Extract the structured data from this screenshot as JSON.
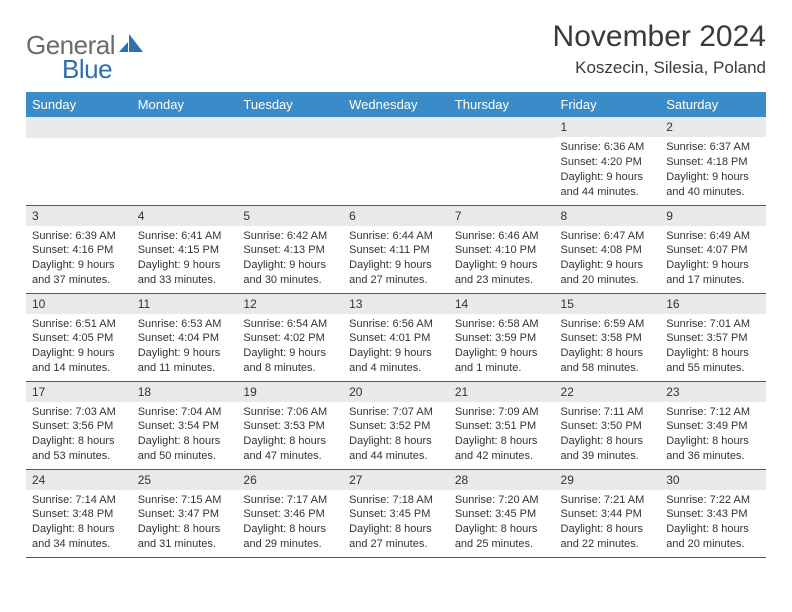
{
  "brand": {
    "part1": "General",
    "part2": "Blue"
  },
  "title": "November 2024",
  "location": "Koszecin, Silesia, Poland",
  "colors": {
    "header_bg": "#3b8bc8",
    "header_text": "#ffffff",
    "daynum_bg": "#e9e9e9",
    "border": "#3b5f7f",
    "brand_gray": "#6b6b6b",
    "brand_blue": "#2e6fb0",
    "text": "#333333",
    "page_bg": "#ffffff"
  },
  "weekdays": [
    "Sunday",
    "Monday",
    "Tuesday",
    "Wednesday",
    "Thursday",
    "Friday",
    "Saturday"
  ],
  "weeks": [
    [
      null,
      null,
      null,
      null,
      null,
      {
        "n": "1",
        "sunrise": "6:36 AM",
        "sunset": "4:20 PM",
        "daylight": "9 hours and 44 minutes."
      },
      {
        "n": "2",
        "sunrise": "6:37 AM",
        "sunset": "4:18 PM",
        "daylight": "9 hours and 40 minutes."
      }
    ],
    [
      {
        "n": "3",
        "sunrise": "6:39 AM",
        "sunset": "4:16 PM",
        "daylight": "9 hours and 37 minutes."
      },
      {
        "n": "4",
        "sunrise": "6:41 AM",
        "sunset": "4:15 PM",
        "daylight": "9 hours and 33 minutes."
      },
      {
        "n": "5",
        "sunrise": "6:42 AM",
        "sunset": "4:13 PM",
        "daylight": "9 hours and 30 minutes."
      },
      {
        "n": "6",
        "sunrise": "6:44 AM",
        "sunset": "4:11 PM",
        "daylight": "9 hours and 27 minutes."
      },
      {
        "n": "7",
        "sunrise": "6:46 AM",
        "sunset": "4:10 PM",
        "daylight": "9 hours and 23 minutes."
      },
      {
        "n": "8",
        "sunrise": "6:47 AM",
        "sunset": "4:08 PM",
        "daylight": "9 hours and 20 minutes."
      },
      {
        "n": "9",
        "sunrise": "6:49 AM",
        "sunset": "4:07 PM",
        "daylight": "9 hours and 17 minutes."
      }
    ],
    [
      {
        "n": "10",
        "sunrise": "6:51 AM",
        "sunset": "4:05 PM",
        "daylight": "9 hours and 14 minutes."
      },
      {
        "n": "11",
        "sunrise": "6:53 AM",
        "sunset": "4:04 PM",
        "daylight": "9 hours and 11 minutes."
      },
      {
        "n": "12",
        "sunrise": "6:54 AM",
        "sunset": "4:02 PM",
        "daylight": "9 hours and 8 minutes."
      },
      {
        "n": "13",
        "sunrise": "6:56 AM",
        "sunset": "4:01 PM",
        "daylight": "9 hours and 4 minutes."
      },
      {
        "n": "14",
        "sunrise": "6:58 AM",
        "sunset": "3:59 PM",
        "daylight": "9 hours and 1 minute."
      },
      {
        "n": "15",
        "sunrise": "6:59 AM",
        "sunset": "3:58 PM",
        "daylight": "8 hours and 58 minutes."
      },
      {
        "n": "16",
        "sunrise": "7:01 AM",
        "sunset": "3:57 PM",
        "daylight": "8 hours and 55 minutes."
      }
    ],
    [
      {
        "n": "17",
        "sunrise": "7:03 AM",
        "sunset": "3:56 PM",
        "daylight": "8 hours and 53 minutes."
      },
      {
        "n": "18",
        "sunrise": "7:04 AM",
        "sunset": "3:54 PM",
        "daylight": "8 hours and 50 minutes."
      },
      {
        "n": "19",
        "sunrise": "7:06 AM",
        "sunset": "3:53 PM",
        "daylight": "8 hours and 47 minutes."
      },
      {
        "n": "20",
        "sunrise": "7:07 AM",
        "sunset": "3:52 PM",
        "daylight": "8 hours and 44 minutes."
      },
      {
        "n": "21",
        "sunrise": "7:09 AM",
        "sunset": "3:51 PM",
        "daylight": "8 hours and 42 minutes."
      },
      {
        "n": "22",
        "sunrise": "7:11 AM",
        "sunset": "3:50 PM",
        "daylight": "8 hours and 39 minutes."
      },
      {
        "n": "23",
        "sunrise": "7:12 AM",
        "sunset": "3:49 PM",
        "daylight": "8 hours and 36 minutes."
      }
    ],
    [
      {
        "n": "24",
        "sunrise": "7:14 AM",
        "sunset": "3:48 PM",
        "daylight": "8 hours and 34 minutes."
      },
      {
        "n": "25",
        "sunrise": "7:15 AM",
        "sunset": "3:47 PM",
        "daylight": "8 hours and 31 minutes."
      },
      {
        "n": "26",
        "sunrise": "7:17 AM",
        "sunset": "3:46 PM",
        "daylight": "8 hours and 29 minutes."
      },
      {
        "n": "27",
        "sunrise": "7:18 AM",
        "sunset": "3:45 PM",
        "daylight": "8 hours and 27 minutes."
      },
      {
        "n": "28",
        "sunrise": "7:20 AM",
        "sunset": "3:45 PM",
        "daylight": "8 hours and 25 minutes."
      },
      {
        "n": "29",
        "sunrise": "7:21 AM",
        "sunset": "3:44 PM",
        "daylight": "8 hours and 22 minutes."
      },
      {
        "n": "30",
        "sunrise": "7:22 AM",
        "sunset": "3:43 PM",
        "daylight": "8 hours and 20 minutes."
      }
    ]
  ]
}
